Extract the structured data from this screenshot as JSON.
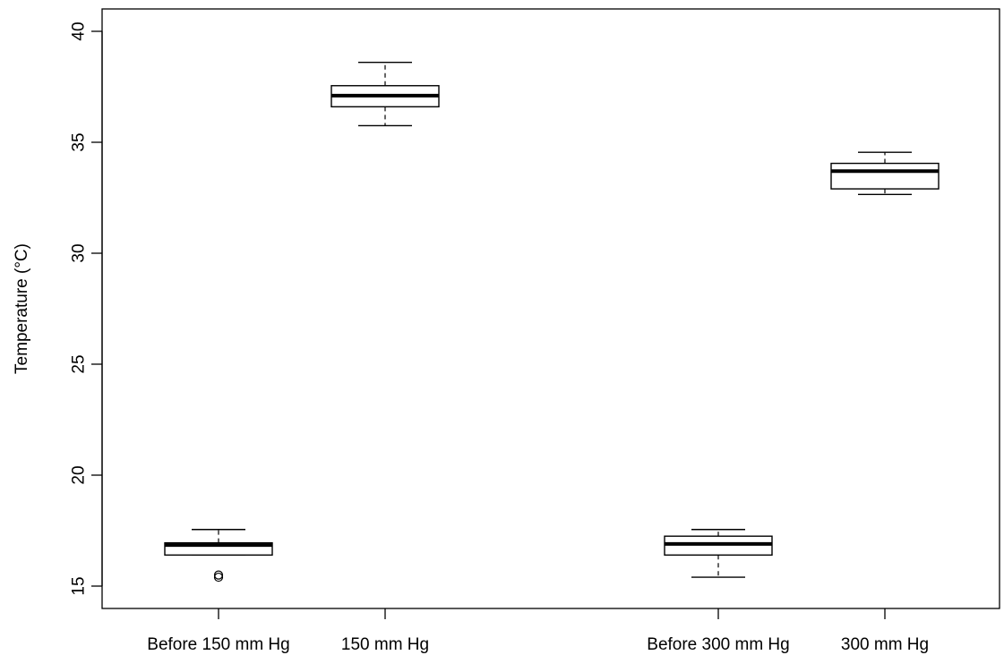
{
  "chart_data": {
    "type": "boxplot",
    "title": "",
    "xlabel": "",
    "ylabel": "Temperature (°C)",
    "ylim": [
      14,
      41
    ],
    "yticks": [
      15,
      20,
      25,
      30,
      35,
      40
    ],
    "grid": false,
    "legend": "none",
    "categories": [
      "Before 150 mm Hg",
      "150 mm Hg",
      "Before 300 mm Hg",
      "300 mm Hg"
    ],
    "x_positions": [
      1,
      2,
      4,
      5
    ],
    "boxes": [
      {
        "category": "Before 150 mm Hg",
        "whisker_low": 16.4,
        "q1": 16.4,
        "median": 16.85,
        "q3": 16.95,
        "whisker_high": 17.55,
        "outliers": [
          15.5,
          15.4
        ]
      },
      {
        "category": "150 mm Hg",
        "whisker_low": 35.75,
        "q1": 36.6,
        "median": 37.1,
        "q3": 37.55,
        "whisker_high": 38.6,
        "outliers": []
      },
      {
        "category": "Before 300 mm Hg",
        "whisker_low": 15.4,
        "q1": 16.4,
        "median": 16.9,
        "q3": 17.25,
        "whisker_high": 17.55,
        "outliers": []
      },
      {
        "category": "300 mm Hg",
        "whisker_low": 32.65,
        "q1": 32.9,
        "median": 33.7,
        "q3": 34.05,
        "whisker_high": 34.55,
        "outliers": []
      }
    ],
    "colors": {
      "box_fill": "#ffffff",
      "line": "#000000"
    }
  }
}
